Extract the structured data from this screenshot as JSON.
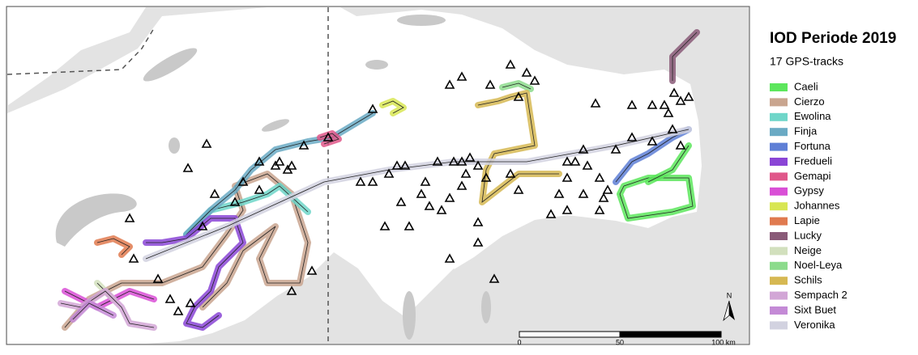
{
  "title": "IOD Periode 2019",
  "subtitle": "17 GPS-tracks",
  "legend": [
    {
      "name": "Caeli",
      "color": "#5ce65c"
    },
    {
      "name": "Cierzo",
      "color": "#c9a58f"
    },
    {
      "name": "Ewolina",
      "color": "#6fd6c9"
    },
    {
      "name": "Finja",
      "color": "#6aaac4"
    },
    {
      "name": "Fortuna",
      "color": "#5e7fd6"
    },
    {
      "name": "Fredueli",
      "color": "#8a45d6"
    },
    {
      "name": "Gemapi",
      "color": "#e0578a"
    },
    {
      "name": "Gypsy",
      "color": "#d94fd6"
    },
    {
      "name": "Johannes",
      "color": "#d8e653"
    },
    {
      "name": "Lapie",
      "color": "#e07a4f"
    },
    {
      "name": "Lucky",
      "color": "#8a5a78"
    },
    {
      "name": "Neige",
      "color": "#d2e0bd"
    },
    {
      "name": "Noel-Leya",
      "color": "#8cdb8c"
    },
    {
      "name": "Schils",
      "color": "#d6b852"
    },
    {
      "name": "Sempach 2",
      "color": "#d2a6d6"
    },
    {
      "name": "Sixt Buet",
      "color": "#c48ad6"
    },
    {
      "name": "Veronika",
      "color": "#d2d2e0"
    }
  ],
  "scale_bar": {
    "labels": [
      "0",
      "50",
      "100 km"
    ]
  },
  "north_label": "N"
}
